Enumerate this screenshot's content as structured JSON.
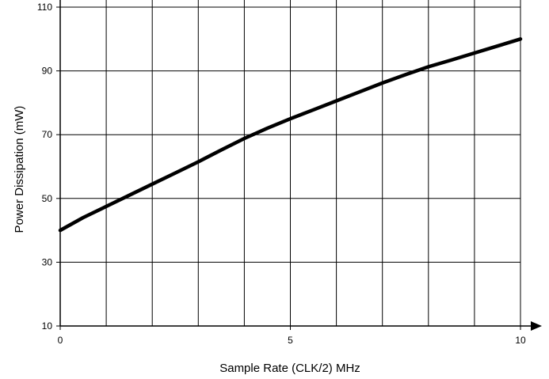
{
  "chart_data": {
    "type": "line",
    "title": "",
    "xlabel": "Sample Rate (CLK/2) MHz",
    "ylabel": "Power Dissipation (mW)",
    "xlim": [
      0,
      10
    ],
    "ylim": [
      10,
      110
    ],
    "x_ticks": [
      "0",
      "5",
      "10"
    ],
    "y_ticks": [
      "10",
      "30",
      "50",
      "70",
      "90",
      "110"
    ],
    "x_grid": [
      1,
      2,
      3,
      4,
      5,
      6,
      7,
      8,
      9,
      10
    ],
    "y_grid": [
      30,
      50,
      70,
      90,
      110
    ],
    "grid": true,
    "line_color": "#000000",
    "series": [
      {
        "x": [
          0,
          0.5,
          1,
          1.5,
          2,
          2.5,
          3,
          3.5,
          4,
          4.5,
          5,
          5.5,
          6,
          6.5,
          7,
          7.5,
          8,
          8.5,
          9,
          9.5,
          10
        ],
        "y": [
          40,
          44,
          47.5,
          51,
          54.5,
          58,
          61.5,
          65.2,
          68.8,
          72,
          75,
          77.8,
          80.6,
          83.4,
          86.2,
          88.8,
          91.3,
          93.4,
          95.6,
          97.8,
          100
        ]
      }
    ]
  }
}
